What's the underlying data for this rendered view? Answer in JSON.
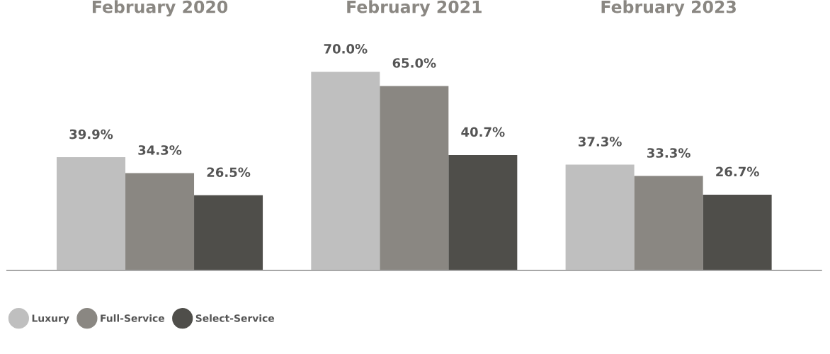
{
  "chart_data": {
    "type": "bar",
    "categories": [
      "February 2020",
      "February 2021",
      "February 2023"
    ],
    "series": [
      {
        "name": "Luxury",
        "color": "#bfbfbf",
        "values": [
          39.9,
          70.0,
          37.3
        ],
        "value_labels": [
          "39.9%",
          "70.0%",
          "37.3%"
        ]
      },
      {
        "name": "Full-Service",
        "color": "#8a8782",
        "values": [
          34.3,
          65.0,
          33.3
        ],
        "value_labels": [
          "34.3%",
          "65.0%",
          "33.3%"
        ]
      },
      {
        "name": "Select-Service",
        "color": "#4f4e4a",
        "values": [
          26.5,
          40.7,
          26.7
        ],
        "value_labels": [
          "26.5%",
          "40.7%",
          "26.7%"
        ]
      }
    ],
    "legend": "bottom left",
    "grid": false
  }
}
